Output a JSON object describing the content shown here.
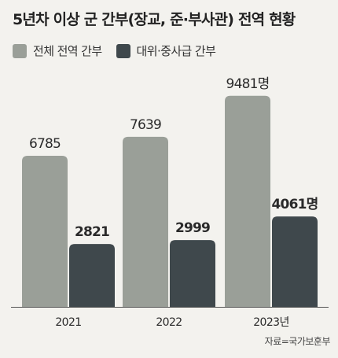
{
  "title": "5년차 이상 군 간부(장교, 준·부사관) 전역 현황",
  "source": "자료=국가보훈부",
  "colors": {
    "total": "#9a9f98",
    "officers": "#3f484c",
    "background": "#f3f2ee"
  },
  "chart_data": {
    "type": "bar",
    "categories": [
      "2021",
      "2022",
      "2023년"
    ],
    "series": [
      {
        "name": "전체 전역 간부",
        "values": [
          6785,
          7639,
          9481
        ],
        "labels": [
          "6785",
          "7639",
          "9481명"
        ],
        "color": "#9a9f98"
      },
      {
        "name": "대위·중사급 간부",
        "values": [
          2821,
          2999,
          4061
        ],
        "labels": [
          "2821",
          "2999",
          "4061명"
        ],
        "color": "#3f484c"
      }
    ],
    "ylim": [
      0,
      10250
    ],
    "legend_position": "top-left",
    "grid": false
  }
}
